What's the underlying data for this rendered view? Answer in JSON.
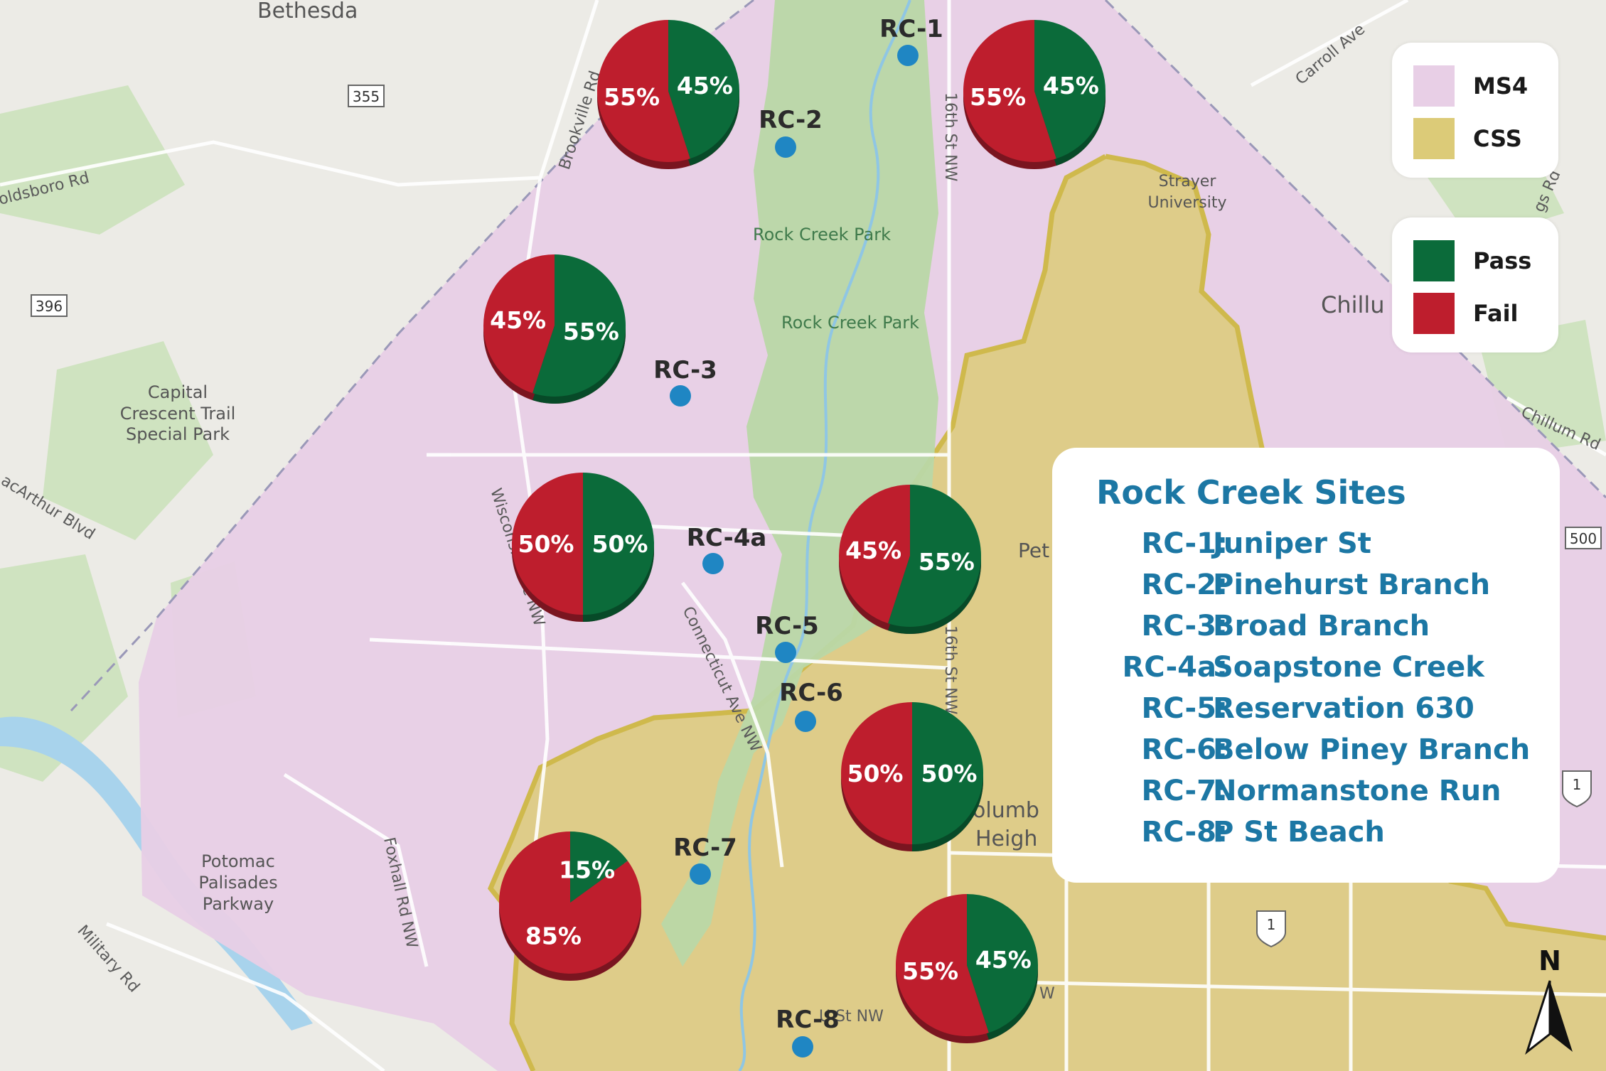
{
  "map_labels": {
    "places": [
      "Bethesda",
      "Capital",
      "Crescent Trail",
      "Special Park",
      "Potomac",
      "Palisades",
      "Parkway",
      "Strayer",
      "University",
      "Chillu",
      "Pet",
      "olumb",
      "Heigh"
    ],
    "parks": [
      "Rock Creek Park",
      "Rock Creek Park"
    ],
    "streets": [
      "Brookville Rd",
      "oldsboro Rd",
      "Carroll Ave",
      "16th St NW",
      "Wisconsin Ave NW",
      "Connecticut Ave NW",
      "acArthur Blvd",
      "Foxhall Rd NW",
      "Military Rd",
      "Chillum Rd",
      "gs Rd",
      "16th St NW",
      "U St NW",
      "W"
    ],
    "shields": [
      "355",
      "396",
      "500",
      "1",
      "1"
    ]
  },
  "sites": [
    {
      "id": "RC-1",
      "pass": 45,
      "fail": 55
    },
    {
      "id": "RC-2",
      "pass": 45,
      "fail": 55
    },
    {
      "id": "RC-3",
      "pass": 55,
      "fail": 45
    },
    {
      "id": "RC-4a",
      "pass": 50,
      "fail": 50
    },
    {
      "id": "RC-5",
      "pass": 55,
      "fail": 45
    },
    {
      "id": "RC-6",
      "pass": 50,
      "fail": 50
    },
    {
      "id": "RC-7",
      "pass": 15,
      "fail": 85
    },
    {
      "id": "RC-8",
      "pass": 45,
      "fail": 55
    }
  ],
  "legend_area": {
    "items": [
      {
        "label": "MS4",
        "color": "#e8cfe6"
      },
      {
        "label": "CSS",
        "color": "#dccb78"
      }
    ]
  },
  "legend_result": {
    "items": [
      {
        "label": "Pass",
        "color": "#0b6b3a"
      },
      {
        "label": "Fail",
        "color": "#be1e2d"
      }
    ]
  },
  "site_list": {
    "title": "Rock Creek Sites",
    "rows": [
      {
        "code": "RC-1:",
        "name": "Juniper St"
      },
      {
        "code": "RC-2:",
        "name": "Pinehurst Branch"
      },
      {
        "code": "RC-3:",
        "name": "Broad Branch"
      },
      {
        "code": "RC-4a:",
        "name": "Soapstone Creek"
      },
      {
        "code": "RC-5:",
        "name": "Reservation 630"
      },
      {
        "code": "RC-6:",
        "name": "Below Piney Branch"
      },
      {
        "code": "RC-7:",
        "name": "Normanstone Run"
      },
      {
        "code": "RC-8:",
        "name": "P St Beach"
      }
    ]
  },
  "north_arrow_label": "N",
  "colors": {
    "pass": "#0b6b3a",
    "fail": "#be1e2d",
    "site_dot": "#1f86c3",
    "ms4": "#e8cfe6",
    "css": "#dccb78",
    "park": "#b9d7a6"
  }
}
